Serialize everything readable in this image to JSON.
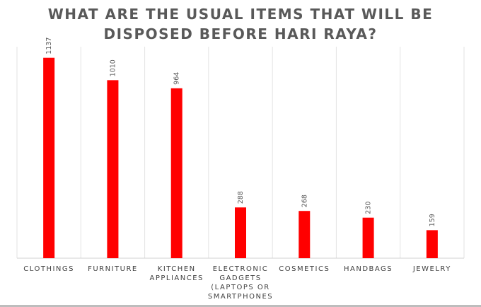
{
  "chart_data": {
    "type": "bar",
    "title_lines": [
      "WHAT ARE THE USUAL ITEMS THAT WILL BE",
      "DISPOSED BEFORE HARI RAYA?"
    ],
    "categories": [
      "CLOTHINGS",
      "FURNITURE",
      "KITCHEN APPLIANCES",
      "ELECTRONIC GADGETS (LAPTOPS OR SMARTPHONES",
      "COSMETICS",
      "HANDBAGS",
      "JEWELRY"
    ],
    "category_lines": [
      [
        "CLOTHINGS"
      ],
      [
        "FURNITURE"
      ],
      [
        "KITCHEN",
        "APPLIANCES"
      ],
      [
        "ELECTRONIC",
        "GADGETS",
        "(LAPTOPS OR",
        "SMARTPHONES"
      ],
      [
        "COSMETICS"
      ],
      [
        "HANDBAGS"
      ],
      [
        "JEWELRY"
      ]
    ],
    "values": [
      1137,
      1010,
      964,
      288,
      268,
      230,
      159
    ],
    "data_labels": [
      "1137",
      "1010",
      "964",
      "288",
      "268",
      "230",
      "159"
    ],
    "ylim": [
      0,
      1200
    ],
    "bar_color": "#ff0000",
    "grid": "vertical category separators",
    "legend": "none"
  }
}
